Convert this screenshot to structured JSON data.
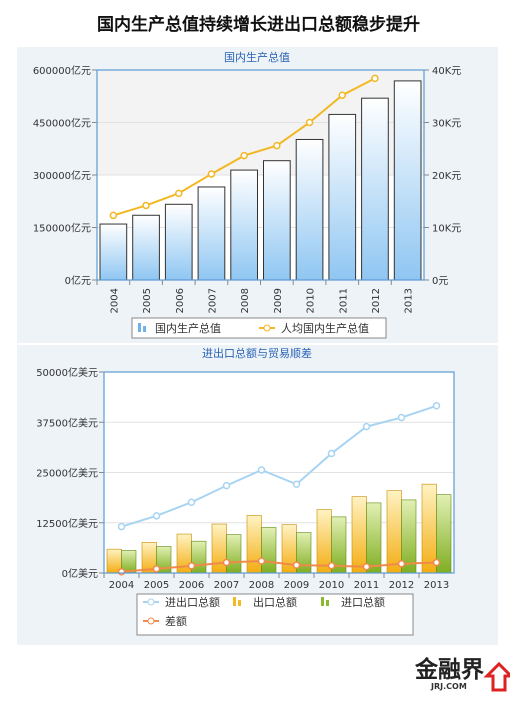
{
  "page_title": "国内生产总值持续增长进出口总额稳步提升",
  "brand": {
    "name": "金融界",
    "sub": "JRJ.COM"
  },
  "chart_data": [
    {
      "type": "bar",
      "title": "国内生产总值",
      "categories": [
        "2004",
        "2005",
        "2006",
        "2007",
        "2008",
        "2009",
        "2010",
        "2011",
        "2012",
        "2013"
      ],
      "ylim": [
        0,
        600000
      ],
      "y_ticks": [
        "0亿元",
        "150000亿元",
        "300000亿元",
        "450000亿元",
        "600000亿元"
      ],
      "y2lim": [
        0,
        40
      ],
      "y2_ticks": [
        "0元",
        "10K元",
        "20K元",
        "30K元",
        "40K元"
      ],
      "series": [
        {
          "name": "国内生产总值",
          "type": "bar",
          "axis": "left",
          "color": "#6fb3ea",
          "values": [
            159878,
            184937,
            216314,
            265810,
            314045,
            340903,
            401513,
            473104,
            519470,
            568845
          ]
        },
        {
          "name": "人均国内生产总值",
          "type": "line",
          "axis": "right",
          "color": "#f2b823",
          "values": [
            12.3,
            14.2,
            16.5,
            20.2,
            23.7,
            25.6,
            30.0,
            35.2,
            38.4,
            null
          ]
        }
      ],
      "legend_position": "bottom"
    },
    {
      "type": "bar",
      "title": "进出口总额与贸易顺差",
      "categories": [
        "2004",
        "2005",
        "2006",
        "2007",
        "2008",
        "2009",
        "2010",
        "2011",
        "2012",
        "2013"
      ],
      "ylim": [
        0,
        50000
      ],
      "y_ticks": [
        "0亿美元",
        "12500亿美元",
        "25000亿美元",
        "37500亿美元",
        "50000亿美元"
      ],
      "series": [
        {
          "name": "进出口总额",
          "type": "line",
          "color": "#a8d4f2",
          "values": [
            11546,
            14219,
            17604,
            21737,
            25633,
            22075,
            29740,
            36419,
            38671,
            41600
          ]
        },
        {
          "name": "出口总额",
          "type": "bar",
          "color": "#f5b923",
          "values": [
            5933,
            7620,
            9689,
            12178,
            14307,
            12017,
            15778,
            18984,
            20487,
            22100
          ]
        },
        {
          "name": "进口总额",
          "type": "bar",
          "color": "#8db92e",
          "values": [
            5612,
            6600,
            7915,
            9560,
            11326,
            10059,
            13962,
            17435,
            18184,
            19500
          ]
        },
        {
          "name": "差额",
          "type": "line",
          "color": "#f08a4b",
          "values": [
            321,
            1020,
            1775,
            2618,
            2981,
            1957,
            1815,
            1549,
            2303,
            2600
          ]
        }
      ],
      "legend_position": "bottom"
    }
  ]
}
